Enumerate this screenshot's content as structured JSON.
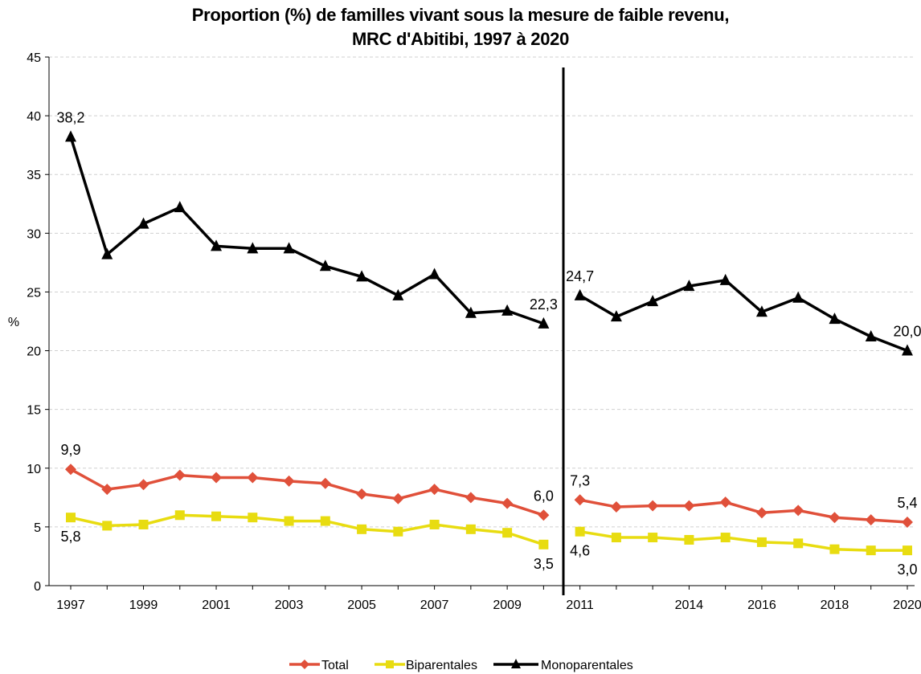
{
  "chart_data": {
    "type": "line",
    "title_line1": "Proportion (%) de familles vivant sous la mesure de faible revenu,",
    "title_line2": "MRC d'Abitibi, 1997 à 2020",
    "ylabel": "%",
    "ylim": [
      0,
      45
    ],
    "yticks": [
      "0",
      "5",
      "10",
      "15",
      "20",
      "25",
      "30",
      "35",
      "40",
      "45"
    ],
    "x": [
      1997,
      1998,
      1999,
      2000,
      2001,
      2002,
      2003,
      2004,
      2005,
      2006,
      2007,
      2008,
      2009,
      2010,
      2011,
      2012,
      2013,
      2014,
      2015,
      2016,
      2017,
      2018,
      2019,
      2020
    ],
    "x_tick_labels": [
      {
        "year": 1997,
        "label": "1997"
      },
      {
        "year": 1999,
        "label": "1999"
      },
      {
        "year": 2001,
        "label": "2001"
      },
      {
        "year": 2003,
        "label": "2003"
      },
      {
        "year": 2005,
        "label": "2005"
      },
      {
        "year": 2007,
        "label": "2007"
      },
      {
        "year": 2009,
        "label": "2009"
      },
      {
        "year": 2011,
        "label": "2011"
      },
      {
        "year": 2014,
        "label": "2014"
      },
      {
        "year": 2016,
        "label": "2016"
      },
      {
        "year": 2018,
        "label": "2018"
      },
      {
        "year": 2020,
        "label": "2020"
      }
    ],
    "series_break": {
      "after": 2010,
      "before": 2011
    },
    "grid": true,
    "legend_position": "bottom",
    "series": [
      {
        "name": "Total",
        "color": "#E0503A",
        "marker": "diamond",
        "values": [
          9.9,
          8.2,
          8.6,
          9.4,
          9.2,
          9.2,
          8.9,
          8.7,
          7.8,
          7.4,
          8.2,
          7.5,
          7.0,
          6.0,
          7.3,
          6.7,
          6.8,
          6.8,
          7.1,
          6.2,
          6.4,
          5.8,
          5.6,
          5.4
        ],
        "labels": [
          {
            "year": 1997,
            "text": "9,9",
            "pos": "above"
          },
          {
            "year": 2010,
            "text": "6,0",
            "pos": "above"
          },
          {
            "year": 2011,
            "text": "7,3",
            "pos": "above"
          },
          {
            "year": 2020,
            "text": "5,4",
            "pos": "above"
          }
        ]
      },
      {
        "name": "Biparentales",
        "color": "#E8DC10",
        "marker": "square",
        "values": [
          5.8,
          5.1,
          5.2,
          6.0,
          5.9,
          5.8,
          5.5,
          5.5,
          4.8,
          4.6,
          5.2,
          4.8,
          4.5,
          3.5,
          4.6,
          4.1,
          4.1,
          3.9,
          4.1,
          3.7,
          3.6,
          3.1,
          3.0,
          3.0
        ],
        "labels": [
          {
            "year": 1997,
            "text": "5,8",
            "pos": "below"
          },
          {
            "year": 2010,
            "text": "3,5",
            "pos": "below"
          },
          {
            "year": 2011,
            "text": "4,6",
            "pos": "below"
          },
          {
            "year": 2020,
            "text": "3,0",
            "pos": "below"
          }
        ]
      },
      {
        "name": "Monoparentales",
        "color": "#000000",
        "marker": "triangle",
        "values": [
          38.2,
          28.2,
          30.8,
          32.2,
          28.9,
          28.7,
          28.7,
          27.2,
          26.3,
          24.7,
          26.5,
          23.2,
          23.4,
          22.3,
          24.7,
          22.9,
          24.2,
          25.5,
          26.0,
          23.3,
          24.5,
          22.7,
          21.2,
          20.0
        ],
        "labels": [
          {
            "year": 1997,
            "text": "38,2",
            "pos": "above"
          },
          {
            "year": 2010,
            "text": "22,3",
            "pos": "above"
          },
          {
            "year": 2011,
            "text": "24,7",
            "pos": "above"
          },
          {
            "year": 2020,
            "text": "20,0",
            "pos": "above"
          }
        ]
      }
    ]
  }
}
